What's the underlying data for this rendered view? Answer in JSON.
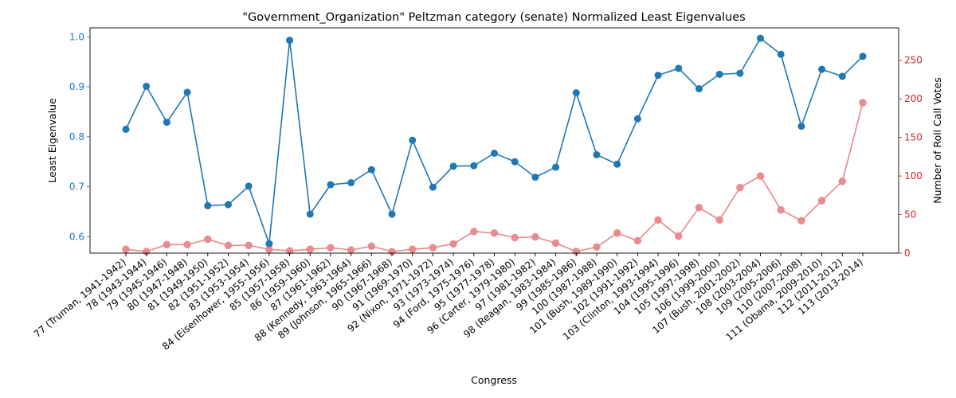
{
  "chart_data": {
    "type": "line",
    "title": "\"Government_Organization\" Peltzman category (senate) Normalized Least Eigenvalues",
    "xlabel": "Congress",
    "ylabel_left": "Least Eigenvalue",
    "ylabel_right": "Number of Roll Call Votes",
    "colors": {
      "left": "#1f77b4",
      "right": "#d62728",
      "right_line": "#e8888a"
    },
    "categories": [
      "77 (Truman, 1941-1942)",
      "78 (1943-1944)",
      "79 (1945-1946)",
      "80 (1947-1948)",
      "81 (1949-1950)",
      "82 (1951-1952)",
      "83 (1953-1954)",
      "84 (Eisenhower, 1955-1956)",
      "85 (1957-1958)",
      "86 (1959-1960)",
      "87 (1961-1962)",
      "88 (Kennedy, 1963-1964)",
      "89 (Johnson, 1965-1966)",
      "90 (1967-1968)",
      "91 (1969-1970)",
      "92 (Nixon, 1971-1972)",
      "93 (1973-1974)",
      "94 (Ford, 1975-1976)",
      "95 (1977-1978)",
      "96 (Carter, 1979-1980)",
      "97 (1981-1982)",
      "98 (Reagan, 1983-1984)",
      "99 (1985-1986)",
      "100 (1987-1988)",
      "101 (Bush, 1989-1990)",
      "102 (1991-1992)",
      "103 (Clinton, 1993-1994)",
      "104 (1995-1996)",
      "105 (1997-1998)",
      "106 (1999-2000)",
      "107 (Bush, 2001-2002)",
      "108 (2003-2004)",
      "109 (2005-2006)",
      "110 (2007-2008)",
      "111 (Obama, 2009-2010)",
      "112 (2011-2012)",
      "113 (2013-2014)"
    ],
    "series": [
      {
        "name": "Least Eigenvalue",
        "axis": "left",
        "values": [
          0.815,
          0.901,
          0.829,
          0.889,
          0.662,
          0.664,
          0.701,
          0.586,
          0.993,
          0.645,
          0.704,
          0.708,
          0.734,
          0.645,
          0.793,
          0.699,
          0.741,
          0.742,
          0.767,
          0.75,
          0.719,
          0.739,
          0.888,
          0.764,
          0.745,
          0.836,
          0.923,
          0.937,
          0.896,
          0.925,
          0.927,
          0.997,
          0.965,
          0.821,
          0.935,
          0.921,
          0.961
        ]
      },
      {
        "name": "Number of Roll Call Votes",
        "axis": "right",
        "values": [
          5,
          2,
          11,
          11,
          18,
          10,
          10,
          5,
          3,
          5,
          7,
          4,
          9,
          2,
          5,
          7,
          12,
          28,
          26,
          20,
          21,
          13,
          2,
          8,
          26,
          16,
          43,
          22,
          59,
          43,
          85,
          100,
          56,
          42,
          68,
          93,
          195
        ]
      }
    ],
    "ylim_left": [
      0.567,
      1.018
    ],
    "ylim_right": [
      0,
      292
    ],
    "yticks_left": [
      "0.6",
      "0.7",
      "0.8",
      "0.9",
      "1.0"
    ],
    "yticks_left_values": [
      0.6,
      0.7,
      0.8,
      0.9,
      1.0
    ],
    "yticks_right": [
      "0",
      "50",
      "100",
      "150",
      "200",
      "250"
    ],
    "yticks_right_values": [
      0,
      50,
      100,
      150,
      200,
      250
    ],
    "grid": false,
    "legend": "none"
  }
}
